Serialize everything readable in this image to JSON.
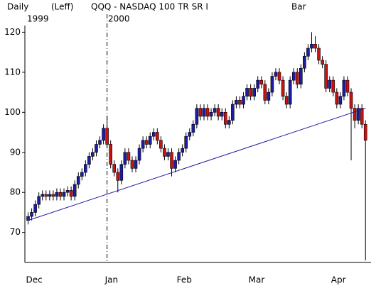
{
  "chart_data": {
    "type": "candlestick",
    "header": [
      "Daily",
      "(Leff)",
      "QQQ - NASDAQ 100 TR SR I",
      "Bar"
    ],
    "year_labels": [
      "1999",
      "2000"
    ],
    "categories": [
      "Dec",
      null,
      null,
      null,
      null,
      null,
      null,
      null,
      null,
      null,
      null,
      null,
      null,
      null,
      null,
      null,
      null,
      null,
      null,
      null,
      null,
      null,
      "Jan",
      null,
      null,
      null,
      null,
      null,
      null,
      null,
      null,
      null,
      null,
      null,
      null,
      null,
      null,
      null,
      null,
      null,
      null,
      null,
      "Feb",
      null,
      null,
      null,
      null,
      null,
      null,
      null,
      null,
      null,
      null,
      null,
      null,
      null,
      null,
      null,
      null,
      null,
      null,
      null,
      "Mar",
      null,
      null,
      null,
      null,
      null,
      null,
      null,
      null,
      null,
      null,
      null,
      null,
      null,
      null,
      null,
      null,
      null,
      null,
      null,
      null,
      null,
      null,
      "Apr",
      null,
      null,
      null,
      null,
      null,
      null,
      null,
      null,
      null
    ],
    "open": [
      73,
      74,
      75,
      77,
      79,
      79.5,
      79,
      79.5,
      79,
      80,
      79,
      80,
      80.5,
      79,
      82,
      84,
      85,
      87,
      89,
      90,
      92,
      93,
      96,
      92,
      87,
      85,
      83,
      87,
      90,
      88,
      86,
      88,
      91,
      93,
      92,
      94,
      95,
      93,
      91,
      89,
      90,
      86,
      88,
      90,
      91,
      94,
      95,
      97,
      101,
      99,
      101,
      99,
      100,
      101,
      99,
      100,
      97,
      98,
      102,
      103,
      102,
      104,
      106,
      104,
      106,
      108,
      107,
      103,
      105,
      109,
      110,
      108,
      104,
      102,
      108,
      110,
      107,
      111,
      114,
      116,
      117,
      116,
      113,
      112,
      106,
      108,
      105,
      102,
      104,
      108,
      105,
      101,
      98,
      101,
      97
    ],
    "high": [
      75,
      76,
      78,
      80,
      80.5,
      80.5,
      80.5,
      80.5,
      81,
      81,
      81,
      81.5,
      81.5,
      83,
      85,
      86,
      88,
      90,
      91,
      93,
      94,
      97,
      99,
      93,
      88,
      86,
      88,
      91,
      91,
      89,
      89,
      92,
      94,
      94,
      95,
      96,
      96,
      94,
      92,
      91,
      91,
      89,
      91,
      92,
      95,
      96,
      98,
      102,
      102,
      102,
      102,
      101,
      102,
      102,
      101,
      101,
      99,
      103,
      104,
      104,
      105,
      107,
      107,
      107,
      109,
      109,
      108,
      106,
      110,
      111,
      111,
      109,
      105,
      109,
      111,
      111,
      112,
      115,
      117,
      120,
      119,
      117,
      114,
      113,
      109,
      109,
      106,
      105,
      109,
      109,
      106,
      102,
      102,
      102,
      98
    ],
    "low": [
      72,
      73,
      74,
      76,
      78,
      78,
      78,
      78,
      78,
      78,
      78,
      79,
      78,
      78,
      81,
      83,
      84,
      86,
      88,
      89,
      91,
      92,
      91,
      86,
      84,
      80,
      82,
      86,
      87,
      85,
      85,
      87,
      90,
      91,
      91,
      93,
      92,
      90,
      88,
      88,
      84,
      85,
      87,
      89,
      90,
      93,
      94,
      96,
      98,
      98,
      98,
      98,
      99,
      98,
      98,
      96,
      96,
      97,
      101,
      101,
      101,
      103,
      103,
      103,
      105,
      106,
      102,
      102,
      104,
      108,
      107,
      103,
      101,
      101,
      107,
      106,
      106,
      110,
      113,
      115,
      115,
      112,
      111,
      105,
      105,
      104,
      101,
      101,
      103,
      104,
      88,
      96,
      97,
      96,
      63
    ],
    "close": [
      74,
      75,
      77,
      79,
      79.5,
      79,
      79.5,
      79,
      80,
      79,
      80,
      80.5,
      79,
      82,
      84,
      85,
      87,
      89,
      90,
      92,
      93,
      96,
      92,
      87,
      85,
      83,
      87,
      90,
      88,
      86,
      88,
      91,
      93,
      92,
      94,
      95,
      93,
      91,
      89,
      90,
      86,
      88,
      90,
      91,
      94,
      95,
      97,
      101,
      99,
      101,
      99,
      100,
      101,
      99,
      100,
      97,
      98,
      102,
      103,
      102,
      104,
      106,
      104,
      106,
      108,
      107,
      103,
      105,
      109,
      110,
      108,
      104,
      102,
      108,
      110,
      107,
      111,
      114,
      116,
      117,
      116,
      113,
      112,
      106,
      108,
      105,
      102,
      104,
      108,
      105,
      101,
      98,
      101,
      97,
      93
    ],
    "up_color": "#1c1ca8",
    "down_color": "#cc1111",
    "trendline": {
      "x": [
        0,
        94
      ],
      "y": [
        73,
        101
      ],
      "color": "#1c1ca8"
    },
    "ylim": [
      62.5,
      124.5
    ],
    "yticks": [
      70,
      80,
      90,
      100,
      110,
      120
    ],
    "grid": false
  }
}
